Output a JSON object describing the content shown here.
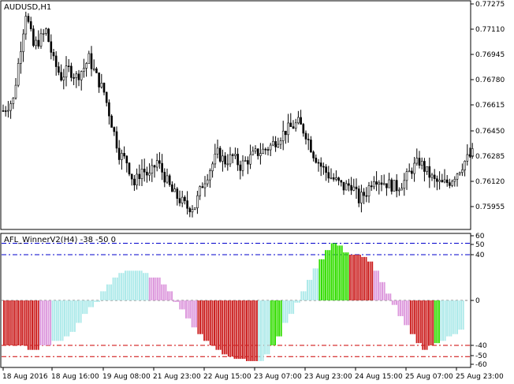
{
  "window": {
    "main_title": "AUDUSD,H1",
    "indicator_title": "AFL_WinnerV2(H4) -38 -50 0"
  },
  "price_axis": {
    "labels": [
      "0.77275",
      "0.77110",
      "0.76945",
      "0.76780",
      "0.76615",
      "0.76450",
      "0.76285",
      "0.76120",
      "0.75955"
    ],
    "ylim": [
      0.7587,
      0.773
    ]
  },
  "indicator_axis": {
    "labels": [
      "60",
      "50",
      "40",
      "0",
      "-40",
      "-50",
      "-60"
    ],
    "ylim": [
      -60,
      60
    ]
  },
  "time_axis": {
    "labels": [
      "18 Aug 2016",
      "18 Aug 16:00",
      "19 Aug 08:00",
      "21 Aug 23:00",
      "22 Aug 15:00",
      "23 Aug 07:00",
      "23 Aug 23:00",
      "24 Aug 15:00",
      "25 Aug 07:00",
      "25 Aug 23:00"
    ]
  },
  "colors": {
    "background": "#ffffff",
    "frame": "#000000",
    "candle": "#000000",
    "grid_level": "#808080",
    "blue_level": "#0000cc",
    "red_level": "#cc0000",
    "up_strong": "#33dd00",
    "up_weak": "#aeeaea",
    "down_weak": "#dd99dd",
    "down_strong": "#cc2222"
  },
  "chart_data": [
    {
      "type": "candlestick",
      "title": "AUDUSD,H1",
      "ylim": [
        0.7587,
        0.773
      ],
      "close_path_anchors": [
        [
          0,
          0.7658
        ],
        [
          4,
          0.7665
        ],
        [
          7,
          0.77
        ],
        [
          9,
          0.7722
        ],
        [
          12,
          0.77
        ],
        [
          15,
          0.7705
        ],
        [
          17,
          0.771
        ],
        [
          20,
          0.769
        ],
        [
          23,
          0.768
        ],
        [
          26,
          0.7685
        ],
        [
          29,
          0.768
        ],
        [
          32,
          0.7686
        ],
        [
          34,
          0.7692
        ],
        [
          37,
          0.768
        ],
        [
          40,
          0.767
        ],
        [
          43,
          0.765
        ],
        [
          46,
          0.763
        ],
        [
          49,
          0.7625
        ],
        [
          52,
          0.761
        ],
        [
          55,
          0.762
        ],
        [
          58,
          0.7615
        ],
        [
          61,
          0.7625
        ],
        [
          64,
          0.7615
        ],
        [
          67,
          0.7605
        ],
        [
          70,
          0.76
        ],
        [
          73,
          0.7595
        ],
        [
          76,
          0.7596
        ],
        [
          79,
          0.761
        ],
        [
          82,
          0.762
        ],
        [
          85,
          0.763
        ],
        [
          88,
          0.7625
        ],
        [
          91,
          0.7628
        ],
        [
          94,
          0.7622
        ],
        [
          97,
          0.7626
        ],
        [
          100,
          0.763
        ],
        [
          103,
          0.7632
        ],
        [
          106,
          0.7635
        ],
        [
          109,
          0.764
        ],
        [
          112,
          0.7645
        ],
        [
          115,
          0.7648
        ],
        [
          117,
          0.765
        ],
        [
          120,
          0.7643
        ],
        [
          123,
          0.763
        ],
        [
          126,
          0.7622
        ],
        [
          129,
          0.7616
        ],
        [
          132,
          0.7612
        ],
        [
          135,
          0.7608
        ],
        [
          138,
          0.761
        ],
        [
          141,
          0.76
        ],
        [
          144,
          0.7605
        ],
        [
          147,
          0.7615
        ],
        [
          150,
          0.7612
        ],
        [
          153,
          0.761
        ],
        [
          156,
          0.7608
        ],
        [
          159,
          0.7612
        ],
        [
          162,
          0.762
        ],
        [
          165,
          0.7625
        ],
        [
          168,
          0.7618
        ],
        [
          171,
          0.7612
        ],
        [
          174,
          0.761
        ],
        [
          177,
          0.7612
        ],
        [
          180,
          0.7618
        ],
        [
          183,
          0.7625
        ],
        [
          186,
          0.763
        ]
      ]
    },
    {
      "type": "bar",
      "title": "AFL_WinnerV2(H4) -38 -50 0",
      "ylim": [
        -60,
        60
      ],
      "levels": [
        50,
        40,
        0,
        -40,
        -50
      ],
      "series_names": [
        "up_strong",
        "up_weak",
        "down_weak",
        "down_strong"
      ],
      "values": [
        [
          -40,
          "down_strong"
        ],
        [
          -40,
          "down_strong"
        ],
        [
          -40,
          "down_strong"
        ],
        [
          -40,
          "down_strong"
        ],
        [
          -44,
          "down_strong"
        ],
        [
          -44,
          "down_strong"
        ],
        [
          -40,
          "down_weak"
        ],
        [
          -40,
          "down_weak"
        ],
        [
          -36,
          "up_weak"
        ],
        [
          -36,
          "up_weak"
        ],
        [
          -32,
          "up_weak"
        ],
        [
          -28,
          "up_weak"
        ],
        [
          -20,
          "up_weak"
        ],
        [
          -12,
          "up_weak"
        ],
        [
          -6,
          "up_weak"
        ],
        [
          0,
          "up_weak"
        ],
        [
          8,
          "up_weak"
        ],
        [
          14,
          "up_weak"
        ],
        [
          20,
          "up_weak"
        ],
        [
          24,
          "up_weak"
        ],
        [
          26,
          "up_weak"
        ],
        [
          26,
          "up_weak"
        ],
        [
          26,
          "up_weak"
        ],
        [
          24,
          "up_weak"
        ],
        [
          20,
          "down_weak"
        ],
        [
          20,
          "down_weak"
        ],
        [
          14,
          "down_weak"
        ],
        [
          8,
          "down_weak"
        ],
        [
          0,
          "down_weak"
        ],
        [
          -8,
          "down_weak"
        ],
        [
          -16,
          "down_weak"
        ],
        [
          -24,
          "down_weak"
        ],
        [
          -30,
          "down_strong"
        ],
        [
          -36,
          "down_strong"
        ],
        [
          -40,
          "down_strong"
        ],
        [
          -44,
          "down_strong"
        ],
        [
          -48,
          "down_strong"
        ],
        [
          -50,
          "down_strong"
        ],
        [
          -52,
          "down_strong"
        ],
        [
          -52,
          "down_strong"
        ],
        [
          -54,
          "down_strong"
        ],
        [
          -54,
          "down_strong"
        ],
        [
          -54,
          "up_weak"
        ],
        [
          -48,
          "up_weak"
        ],
        [
          -40,
          "up_strong"
        ],
        [
          -32,
          "up_strong"
        ],
        [
          -20,
          "up_weak"
        ],
        [
          -12,
          "up_weak"
        ],
        [
          -2,
          "up_weak"
        ],
        [
          8,
          "up_weak"
        ],
        [
          18,
          "up_weak"
        ],
        [
          28,
          "up_weak"
        ],
        [
          36,
          "up_strong"
        ],
        [
          44,
          "up_strong"
        ],
        [
          50,
          "up_strong"
        ],
        [
          48,
          "up_strong"
        ],
        [
          42,
          "up_strong"
        ],
        [
          40,
          "down_strong"
        ],
        [
          40,
          "down_strong"
        ],
        [
          38,
          "down_strong"
        ],
        [
          34,
          "down_strong"
        ],
        [
          26,
          "down_weak"
        ],
        [
          16,
          "down_weak"
        ],
        [
          6,
          "down_weak"
        ],
        [
          -4,
          "down_weak"
        ],
        [
          -14,
          "down_weak"
        ],
        [
          -22,
          "down_weak"
        ],
        [
          -30,
          "down_strong"
        ],
        [
          -38,
          "down_strong"
        ],
        [
          -44,
          "down_strong"
        ],
        [
          -40,
          "down_strong"
        ],
        [
          -38,
          "up_strong"
        ],
        [
          -36,
          "up_weak"
        ],
        [
          -32,
          "up_weak"
        ],
        [
          -30,
          "up_weak"
        ],
        [
          -26,
          "up_weak"
        ]
      ]
    }
  ]
}
